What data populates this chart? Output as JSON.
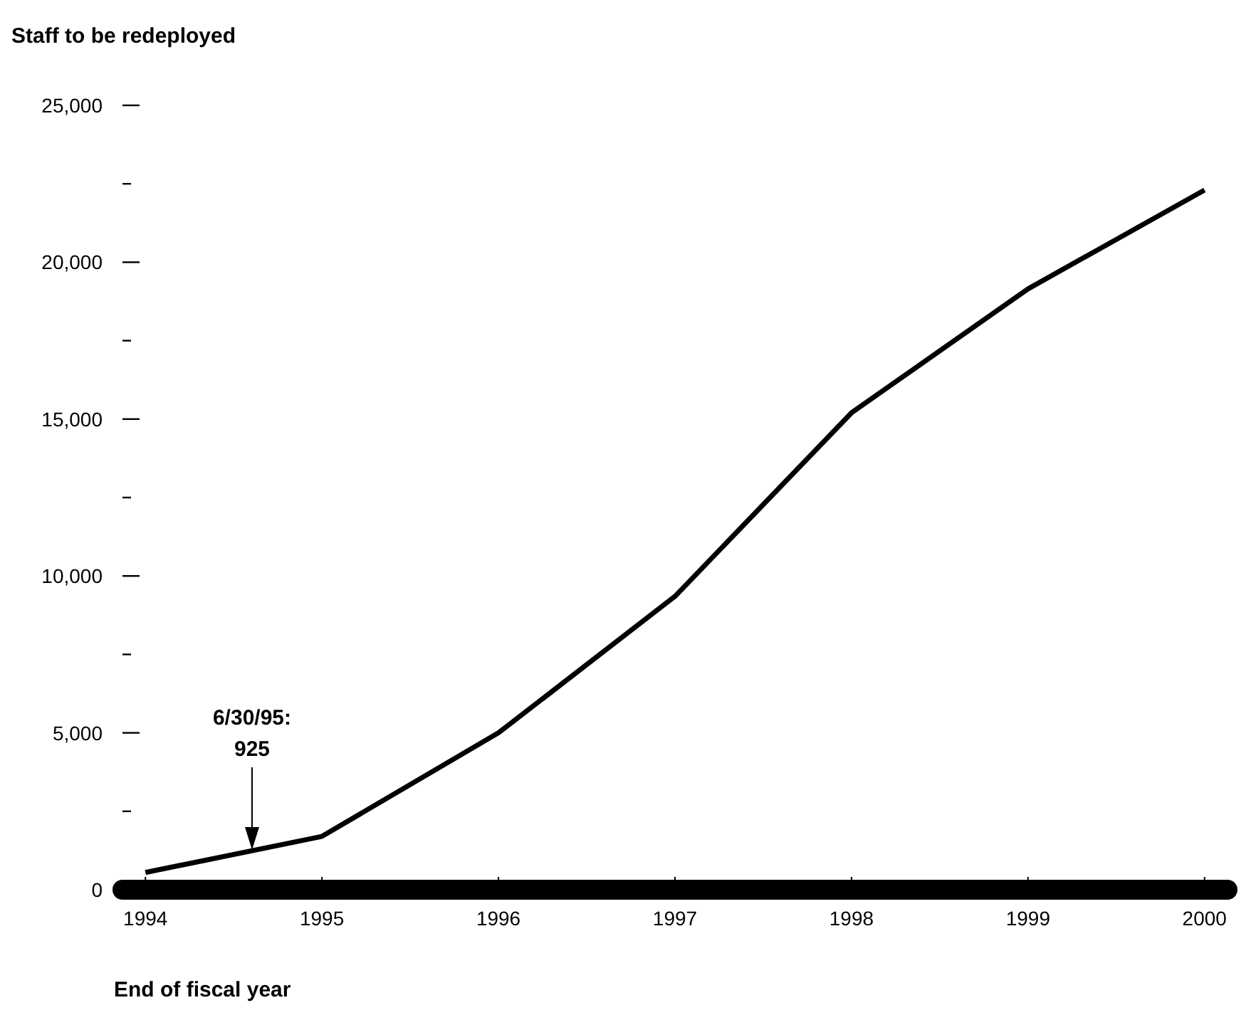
{
  "chart_data": {
    "type": "line",
    "title": "Staff to be redeployed",
    "xlabel": "End of fiscal year",
    "x": [
      1994,
      1995,
      1996,
      1997,
      1998,
      1999,
      2000
    ],
    "series": [
      {
        "color": "#000000",
        "values": [
          550,
          1700,
          5000,
          9350,
          15200,
          19150,
          22300
        ]
      }
    ],
    "xlim": [
      1993.87,
      2000.13
    ],
    "xticks": [
      1994,
      1995,
      1996,
      1997,
      1998,
      1999,
      2000
    ],
    "ylim": [
      0,
      25000
    ],
    "yticks": [
      {
        "value": 0,
        "label": "0"
      },
      {
        "value": 2500,
        "label": null
      },
      {
        "value": 5000,
        "label": "5,000"
      },
      {
        "value": 7500,
        "label": null
      },
      {
        "value": 10000,
        "label": "10,000"
      },
      {
        "value": 12500,
        "label": null
      },
      {
        "value": 15000,
        "label": "15,000"
      },
      {
        "value": 17500,
        "label": null
      },
      {
        "value": 20000,
        "label": "20,000"
      },
      {
        "value": 22500,
        "label": null
      },
      {
        "value": 25000,
        "label": "25,000"
      }
    ],
    "annotations": [
      "6/30/95:\n925"
    ],
    "marker": "none",
    "line_style": "solid"
  }
}
